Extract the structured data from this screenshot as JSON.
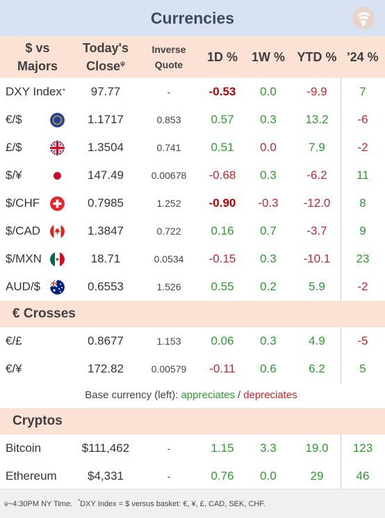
{
  "title": "Currencies",
  "header": {
    "pair_line1": "$ vs",
    "pair_line2": "Majors",
    "close_line1": "Today's",
    "close_line2": "Close",
    "close_mark": "ψ",
    "inverse_line1": "Inverse",
    "inverse_line2": "Quote",
    "d1": "1D %",
    "w1": "1W %",
    "ytd": "YTD %",
    "y24": "'24 %"
  },
  "majors": [
    {
      "name": "DXY Index",
      "mark": "*",
      "close": "97.77",
      "inverse": "-",
      "d1": "-0.53",
      "w1": "0.0",
      "ytd": "-9.9",
      "y24": "7",
      "flag": "none",
      "d1_style": "neg-bold",
      "w1_style": "pos",
      "ytd_style": "neg",
      "y24_style": "pos"
    },
    {
      "name": "€/$",
      "mark": "",
      "close": "1.1717",
      "inverse": "0.853",
      "d1": "0.57",
      "w1": "0.3",
      "ytd": "13.2",
      "y24": "-6",
      "flag": "eu-flag",
      "d1_style": "pos",
      "w1_style": "pos",
      "ytd_style": "pos",
      "y24_style": "neg"
    },
    {
      "name": "£/$",
      "mark": "",
      "close": "1.3504",
      "inverse": "0.741",
      "d1": "0.51",
      "w1": "0.0",
      "ytd": "7.9",
      "y24": "-2",
      "flag": "uk-flag",
      "d1_style": "pos",
      "w1_style": "neg",
      "ytd_style": "pos",
      "y24_style": "neg"
    },
    {
      "name": "$/¥",
      "mark": "",
      "close": "147.49",
      "inverse": "0.00678",
      "d1": "-0.68",
      "w1": "0.3",
      "ytd": "-6.2",
      "y24": "11",
      "flag": "jp-flag",
      "d1_style": "neg",
      "w1_style": "pos",
      "ytd_style": "neg",
      "y24_style": "pos"
    },
    {
      "name": "$/CHF",
      "mark": "",
      "close": "0.7985",
      "inverse": "1.252",
      "d1": "-0.90",
      "w1": "-0.3",
      "ytd": "-12.0",
      "y24": "8",
      "flag": "ch-flag",
      "d1_style": "neg-bold",
      "w1_style": "neg",
      "ytd_style": "neg",
      "y24_style": "pos"
    },
    {
      "name": "$/CAD",
      "mark": "",
      "close": "1.3847",
      "inverse": "0.722",
      "d1": "0.16",
      "w1": "0.7",
      "ytd": "-3.7",
      "y24": "9",
      "flag": "ca-flag",
      "d1_style": "pos",
      "w1_style": "pos",
      "ytd_style": "neg",
      "y24_style": "pos"
    },
    {
      "name": "$/MXN",
      "mark": "",
      "close": "18.71",
      "inverse": "0.0534",
      "d1": "-0.15",
      "w1": "0.3",
      "ytd": "-10.1",
      "y24": "23",
      "flag": "mx-flag",
      "d1_style": "neg",
      "w1_style": "pos",
      "ytd_style": "neg",
      "y24_style": "pos"
    },
    {
      "name": "AUD/$",
      "mark": "",
      "close": "0.6553",
      "inverse": "1.526",
      "d1": "0.55",
      "w1": "0.2",
      "ytd": "5.9",
      "y24": "-2",
      "flag": "au-flag",
      "d1_style": "pos",
      "w1_style": "pos",
      "ytd_style": "pos",
      "y24_style": "neg"
    }
  ],
  "crosses_title": "€ Crosses",
  "crosses": [
    {
      "name": "€/£",
      "close": "0.8677",
      "inverse": "1.153",
      "d1": "0.06",
      "w1": "0.3",
      "ytd": "4.9",
      "y24": "-5",
      "d1_style": "pos",
      "w1_style": "pos",
      "ytd_style": "pos",
      "y24_style": "neg"
    },
    {
      "name": "€/¥",
      "close": "172.82",
      "inverse": "0.00579",
      "d1": "-0.11",
      "w1": "0.6",
      "ytd": "6.2",
      "y24": "5",
      "d1_style": "neg",
      "w1_style": "pos",
      "ytd_style": "pos",
      "y24_style": "pos"
    }
  ],
  "legend": {
    "prefix": "Base currency (left):",
    "appreciates": "appreciates",
    "slash": "/",
    "depreciates": "depreciates"
  },
  "cryptos_title": "Cryptos",
  "cryptos": [
    {
      "name": "Bitcoin",
      "close": "$111,462",
      "inverse": "-",
      "d1": "1.15",
      "w1": "3.3",
      "ytd": "19.0",
      "y24": "123",
      "d1_style": "pos",
      "w1_style": "pos",
      "ytd_style": "pos",
      "y24_style": "pos"
    },
    {
      "name": "Ethereum",
      "close": "$4,331",
      "inverse": "-",
      "d1": "0.76",
      "w1": "0.0",
      "ytd": "29",
      "y24": "46",
      "d1_style": "pos",
      "w1_style": "pos",
      "ytd_style": "pos",
      "y24_style": "pos"
    }
  ],
  "footer": {
    "mark1": "ψ",
    "note1": " ~4:30PM NY Time.",
    "mark2": "*",
    "note2": "DXY Index = $ versus basket: €, ¥, £, CAD, SEK, CHF."
  },
  "colors": {
    "title_bg": "#d9e2f3",
    "header_bg": "#fbe2d5",
    "positive": "#2e9b2e",
    "negative": "#c0282b"
  }
}
